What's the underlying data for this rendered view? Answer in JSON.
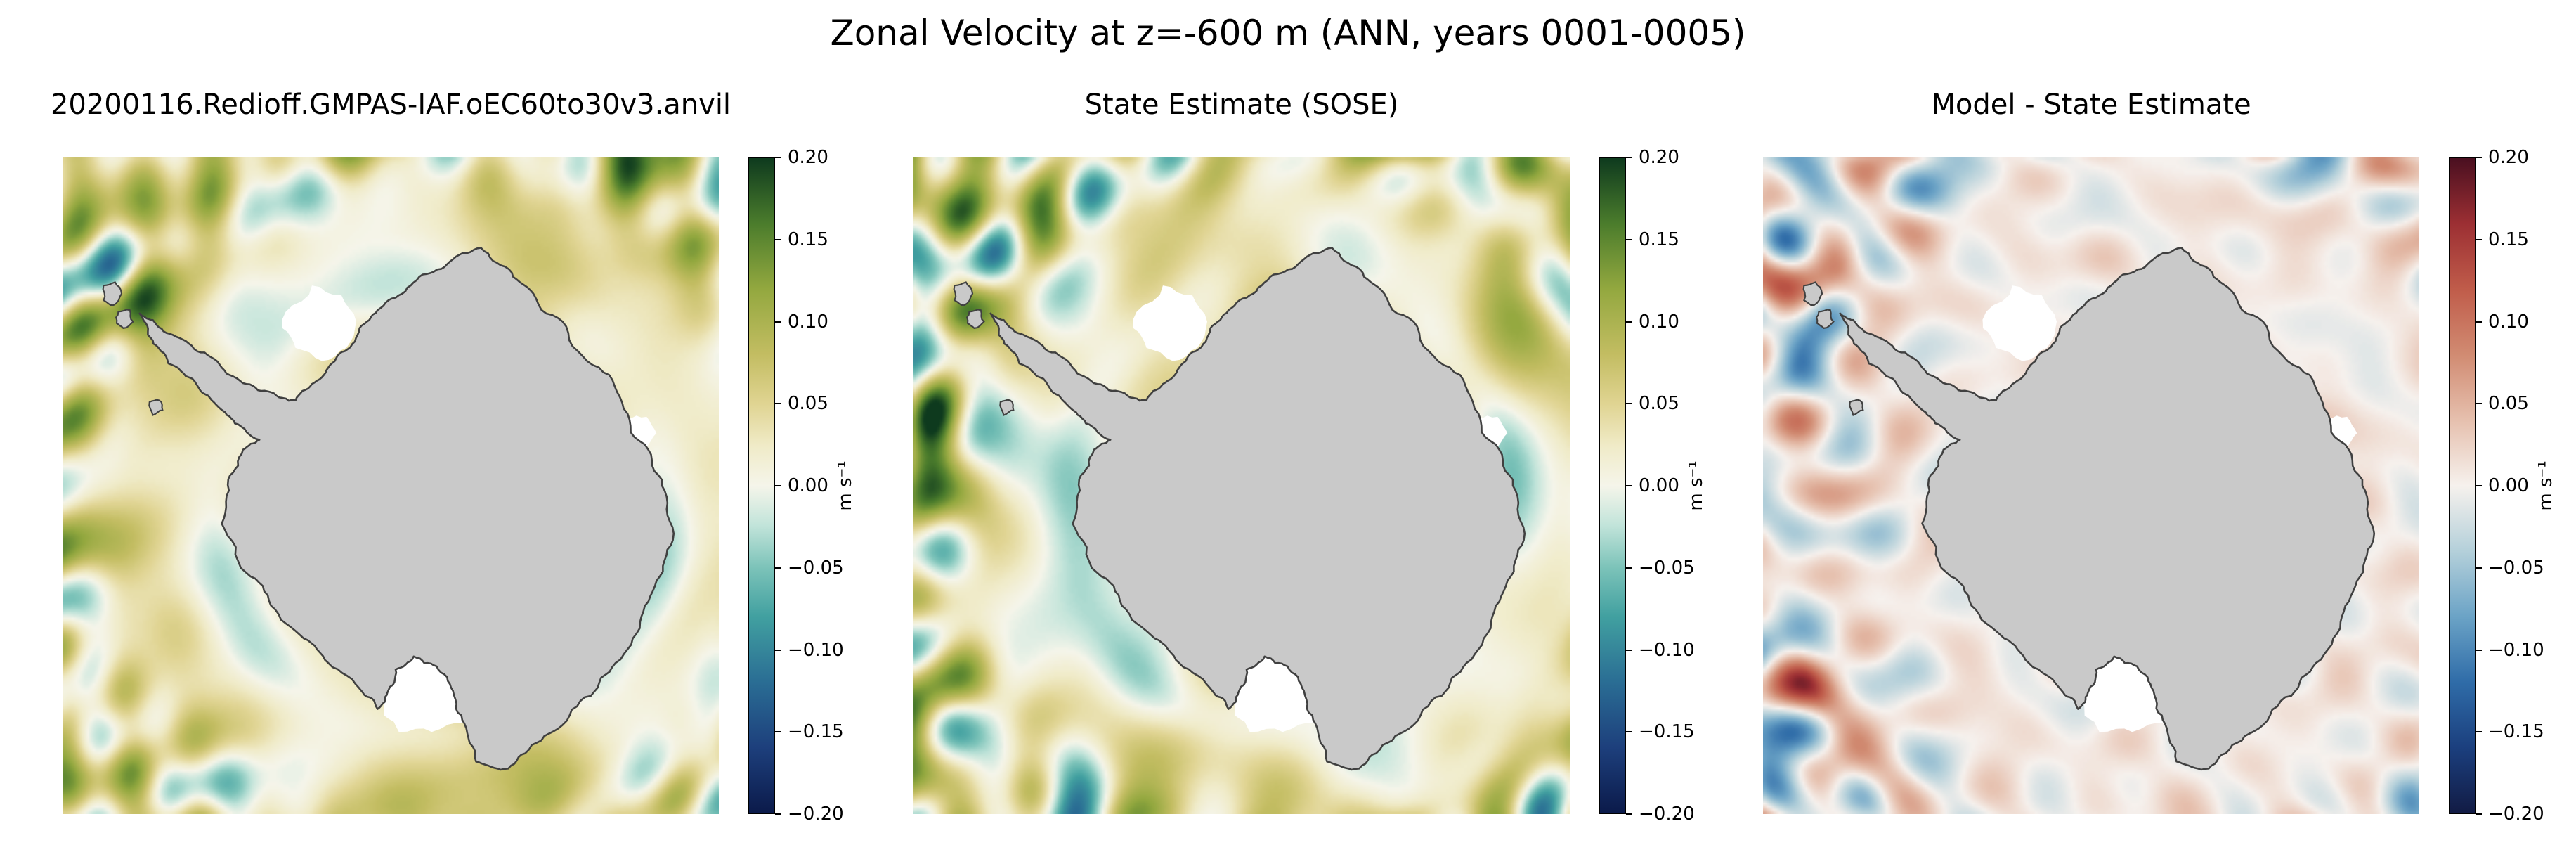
{
  "figure": {
    "title": "Zonal Velocity at z=-600 m (ANN, years 0001-0005)",
    "background_color": "#ffffff",
    "land_color": "#c9c9c9",
    "coastline_color": "#404040",
    "ice_shelf_color": "#ffffff"
  },
  "panels": [
    {
      "id": "model",
      "title": "20200116.Redioff.GMPAS-IAF.oEC60to30v3.anvil",
      "colormap": "ygb",
      "field_style": "model"
    },
    {
      "id": "sose",
      "title": "State Estimate (SOSE)",
      "colormap": "ygb",
      "field_style": "sose"
    },
    {
      "id": "diff",
      "title": "Model - State Estimate",
      "colormap": "balance",
      "field_style": "diff"
    }
  ],
  "colorbar": {
    "ticks": [
      "0.20",
      "0.15",
      "0.10",
      "0.05",
      "0.00",
      "−0.05",
      "−0.10",
      "−0.15",
      "−0.20"
    ],
    "tick_values": [
      0.2,
      0.15,
      0.1,
      0.05,
      0.0,
      -0.05,
      -0.1,
      -0.15,
      -0.2
    ],
    "vmin": -0.2,
    "vmax": 0.2,
    "unit_label": "m s⁻¹"
  },
  "colormaps": {
    "ygb": [
      [
        0.0,
        "#0b1a4a"
      ],
      [
        0.1,
        "#1d3f7c"
      ],
      [
        0.2,
        "#2a6d94"
      ],
      [
        0.3,
        "#41a0a0"
      ],
      [
        0.375,
        "#7cc3b9"
      ],
      [
        0.44,
        "#c2e4da"
      ],
      [
        0.5,
        "#f5f5ea"
      ],
      [
        0.56,
        "#f0ebc8"
      ],
      [
        0.625,
        "#e0d492"
      ],
      [
        0.7,
        "#c3bd62"
      ],
      [
        0.8,
        "#93a83f"
      ],
      [
        0.9,
        "#4b7c2c"
      ],
      [
        1.0,
        "#0e3a1e"
      ]
    ],
    "balance": [
      [
        0.0,
        "#121b44"
      ],
      [
        0.1,
        "#1b3f7e"
      ],
      [
        0.2,
        "#2f6ca8"
      ],
      [
        0.3,
        "#6ba3c6"
      ],
      [
        0.4,
        "#b4d0da"
      ],
      [
        0.5,
        "#f6f1ed"
      ],
      [
        0.6,
        "#e6c0ae"
      ],
      [
        0.7,
        "#d18b72"
      ],
      [
        0.8,
        "#c05c4a"
      ],
      [
        0.9,
        "#9c2f33"
      ],
      [
        1.0,
        "#4a0f20"
      ]
    ]
  },
  "chart_data": {
    "type": "heatmap",
    "layout": "1x3 south-polar maps of the Southern Ocean around Antarctica",
    "suptitle": "Zonal Velocity at z=-600 m (ANN, years 0001-0005)",
    "field": "zonal velocity at z = -600 m, annual mean of years 0001-0005",
    "units": "m s⁻¹",
    "colorbar_ticks": [
      0.2,
      0.15,
      0.1,
      0.05,
      0.0,
      -0.05,
      -0.1,
      -0.15,
      -0.2
    ],
    "colorbar_label": "m s⁻¹",
    "value_range": [
      -0.2,
      0.2
    ],
    "land": "Antarctica continent masked in gray with thin dark coastline; ice-shelf bays (Weddell, Ross) shown white",
    "panels": [
      {
        "title": "20200116.Redioff.GMPAS-IAF.oEC60to30v3.anvil",
        "colormap": "diverging yellow/green (positive eastward) to teal/blue (negative westward), pale near 0",
        "summary": "Ocean mostly weak eastward flow ~0.01 to 0.05 m/s (olive/yellow); stronger eastward jets 0.1-0.2 m/s (dark green) near the outer domain edges; pale/whitish band of near-zero and weak westward flow (-0.02 to -0.08 m/s, light teal) adjacent to the coast"
      },
      {
        "title": "State Estimate (SOSE)",
        "colormap": "same diverging yellow/green to teal/blue",
        "summary": "Similar pattern with more pronounced mesoscale structure: eastward ACC jets 0.1-0.2 m/s near edges, broader teal westward patches -0.05 to -0.1 m/s offshore and near the coast"
      },
      {
        "title": "Model - State Estimate",
        "colormap": "diverging blue (negative) - white - red (positive), dark navy to dark maroon ends",
        "summary": "Differences mostly within ±0.05 m/s (near-white); eddy-scale anomalies of ±0.1 to ±0.2 m/s concentrated near the domain edges and on the western (left) side"
      }
    ]
  }
}
